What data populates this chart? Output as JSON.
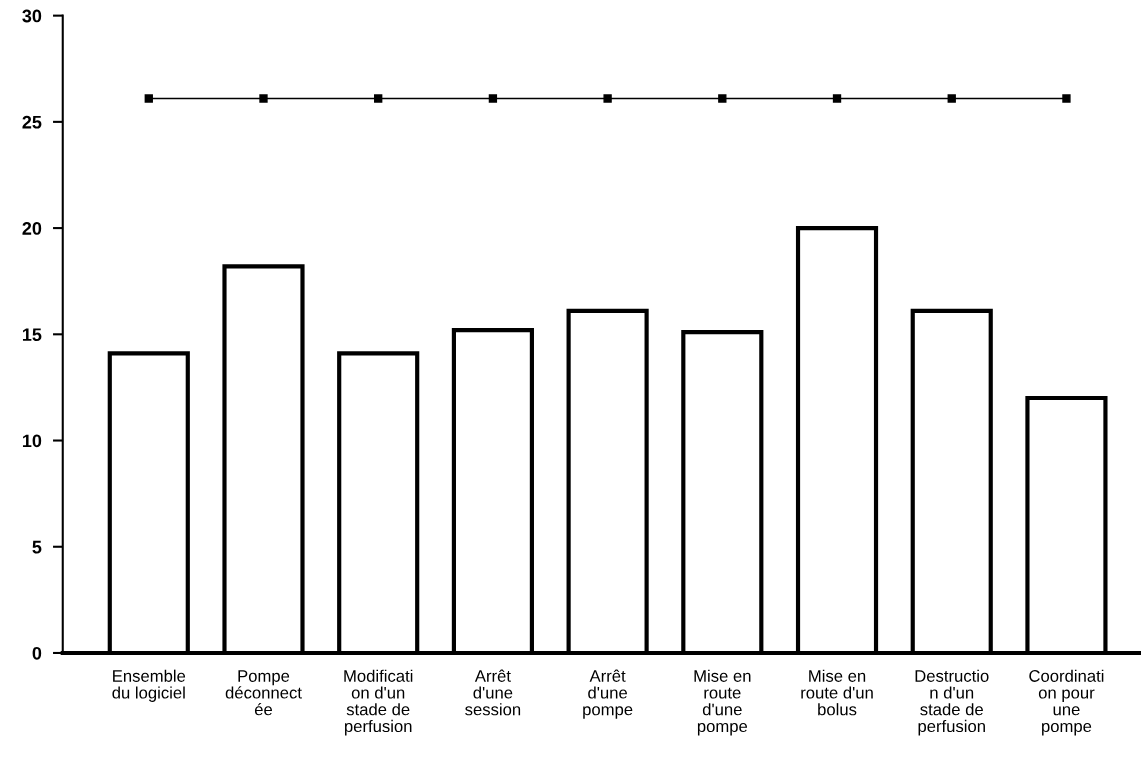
{
  "chart_data": {
    "type": "bar",
    "categories": [
      "Ensemble\ndu logiciel",
      "Pompe\ndéconnect\née",
      "Modificati\non d'un\nstade de\nperfusion",
      "Arrêt\nd'une\nsession",
      "Arrêt\nd'une\npompe",
      "Mise en\nroute\nd'une\npompe",
      "Mise en\nroute d'un\nbolus",
      "Destructio\nn d'un\nstade de\nperfusion",
      "Coordinati\non pour\nune\npompe"
    ],
    "series": [
      {
        "color": "#ffffff",
        "values": [
          14.1,
          18.2,
          14.1,
          15.2,
          16.1,
          15.1,
          20.0,
          16.1,
          12.0
        ]
      },
      {
        "type": "line",
        "color": "#000000",
        "marker": "square",
        "line_style": "solid",
        "values": [
          26.1,
          26.1,
          26.1,
          26.1,
          26.1,
          26.1,
          26.1,
          26.1,
          26.1
        ]
      }
    ],
    "ylim": [
      0,
      30
    ],
    "yticks": [
      0,
      5,
      10,
      15,
      20,
      25,
      30
    ],
    "grid": false,
    "legend": false
  }
}
